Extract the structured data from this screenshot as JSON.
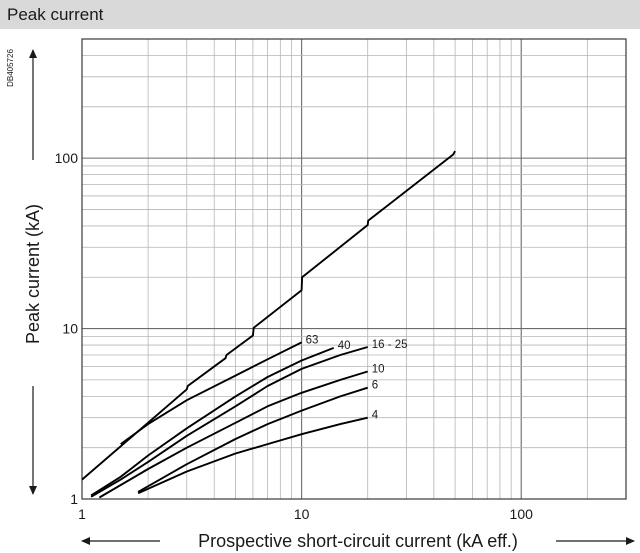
{
  "header": {
    "title": "Peak current"
  },
  "document_id": "DB405726",
  "chart_data": {
    "type": "line",
    "title": "Peak current",
    "xlabel": "Prospective short-circuit current (kA eff.)",
    "ylabel": "Peak current (kA)",
    "x_scale": "log",
    "y_scale": "log",
    "xlim": [
      1,
      300
    ],
    "ylim": [
      1,
      500
    ],
    "x_ticks": [
      {
        "value": 1,
        "label": "1"
      },
      {
        "value": 10,
        "label": "10"
      },
      {
        "value": 100,
        "label": "100"
      }
    ],
    "y_ticks": [
      {
        "value": 1,
        "label": "1"
      },
      {
        "value": 10,
        "label": "10"
      },
      {
        "value": 100,
        "label": "100"
      }
    ],
    "grid": true,
    "line_color": "#000000",
    "series": [
      {
        "kind": "envelope",
        "points": [
          [
            1,
            1.3
          ],
          [
            3,
            4.4
          ],
          [
            3.03,
            4.6
          ],
          [
            4.5,
            6.7
          ],
          [
            4.55,
            7.0
          ],
          [
            6,
            9.1
          ],
          [
            6.05,
            10.1
          ],
          [
            10,
            16.8
          ],
          [
            10.05,
            20.0
          ],
          [
            20,
            40.5
          ],
          [
            20.1,
            43.0
          ],
          [
            49,
            105
          ],
          [
            50,
            110
          ]
        ]
      },
      {
        "name": "63",
        "label": "63",
        "points": [
          [
            1.5,
            2.1
          ],
          [
            2,
            2.75
          ],
          [
            3,
            3.8
          ],
          [
            5,
            5.3
          ],
          [
            7,
            6.6
          ],
          [
            10,
            8.3
          ]
        ]
      },
      {
        "name": "40",
        "label": "40",
        "points": [
          [
            1.1,
            1.05
          ],
          [
            1.5,
            1.35
          ],
          [
            2,
            1.8
          ],
          [
            3,
            2.6
          ],
          [
            5,
            4.0
          ],
          [
            7,
            5.2
          ],
          [
            10,
            6.5
          ],
          [
            14,
            7.7
          ]
        ]
      },
      {
        "name": "16 - 25",
        "label": "16 - 25",
        "points": [
          [
            1.1,
            1.03
          ],
          [
            1.5,
            1.3
          ],
          [
            2,
            1.65
          ],
          [
            3,
            2.35
          ],
          [
            5,
            3.5
          ],
          [
            7,
            4.6
          ],
          [
            10,
            5.8
          ],
          [
            15,
            7.0
          ],
          [
            20,
            7.8
          ]
        ]
      },
      {
        "name": "10",
        "label": "10",
        "points": [
          [
            1.2,
            1.02
          ],
          [
            2,
            1.5
          ],
          [
            3,
            2.0
          ],
          [
            5,
            2.8
          ],
          [
            7,
            3.5
          ],
          [
            10,
            4.2
          ],
          [
            15,
            5.0
          ],
          [
            20,
            5.6
          ]
        ]
      },
      {
        "name": "6",
        "label": "6",
        "points": [
          [
            1.8,
            1.1
          ],
          [
            3,
            1.6
          ],
          [
            5,
            2.25
          ],
          [
            7,
            2.75
          ],
          [
            10,
            3.3
          ],
          [
            15,
            4.0
          ],
          [
            20,
            4.5
          ]
        ]
      },
      {
        "name": "4",
        "label": "4",
        "points": [
          [
            1.8,
            1.08
          ],
          [
            3,
            1.45
          ],
          [
            5,
            1.85
          ],
          [
            7,
            2.1
          ],
          [
            10,
            2.4
          ],
          [
            15,
            2.75
          ],
          [
            20,
            3.0
          ]
        ]
      }
    ]
  }
}
